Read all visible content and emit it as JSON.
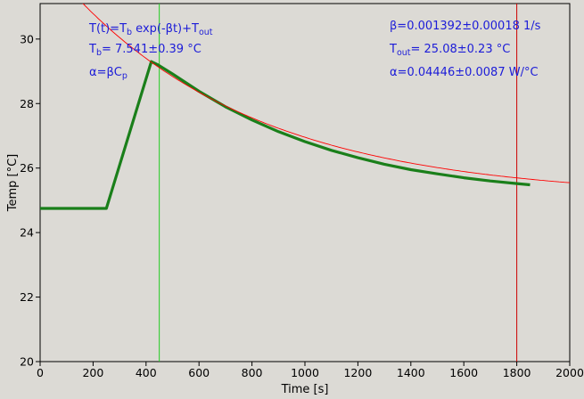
{
  "chart_data": {
    "type": "line",
    "xlabel": "Time [s]",
    "ylabel": "Temp [°C]",
    "xlim": [
      0,
      2000
    ],
    "ylim": [
      20,
      31.1
    ],
    "x_ticks": [
      0,
      200,
      400,
      600,
      800,
      1000,
      1200,
      1400,
      1600,
      1800,
      2000
    ],
    "y_ticks": [
      20,
      22,
      24,
      26,
      28,
      30
    ],
    "grid": false,
    "series": [
      {
        "kind": "measured",
        "color": "#1a7f1a",
        "x": [
          0,
          250,
          420,
          445,
          500,
          600,
          700,
          800,
          900,
          1000,
          1100,
          1200,
          1300,
          1400,
          1500,
          1600,
          1700,
          1800,
          1850
        ],
        "y": [
          24.75,
          24.75,
          29.3,
          29.2,
          28.92,
          28.38,
          27.9,
          27.49,
          27.13,
          26.82,
          26.55,
          26.32,
          26.12,
          25.95,
          25.82,
          25.7,
          25.6,
          25.52,
          25.48
        ]
      },
      {
        "kind": "fit",
        "color": "#ff0000",
        "formula": {
          "T_b": 7.541,
          "beta": 0.001392,
          "T_out": 25.08
        },
        "x_range": [
          150,
          2000
        ]
      }
    ],
    "vertical_lines": [
      {
        "x": 450,
        "color": "#22cc22"
      },
      {
        "x": 1800,
        "color": "#cc0000"
      }
    ],
    "annotations": {
      "formula": {
        "main": [
          "T(t)=T",
          " exp(-βt)+T"
        ],
        "subs": [
          "b",
          "out"
        ]
      },
      "tb": {
        "main": "T",
        "sub": "b",
        "rest": "= 7.541±0.39 °C"
      },
      "alpha_def": {
        "main": "α=βC",
        "sub": "p"
      },
      "beta": "β=0.001392±0.00018 1/s",
      "tout": {
        "main": "T",
        "sub": "out",
        "rest": "= 25.08±0.23 °C"
      },
      "alpha": "α=0.04446±0.0087 W/°C"
    }
  }
}
